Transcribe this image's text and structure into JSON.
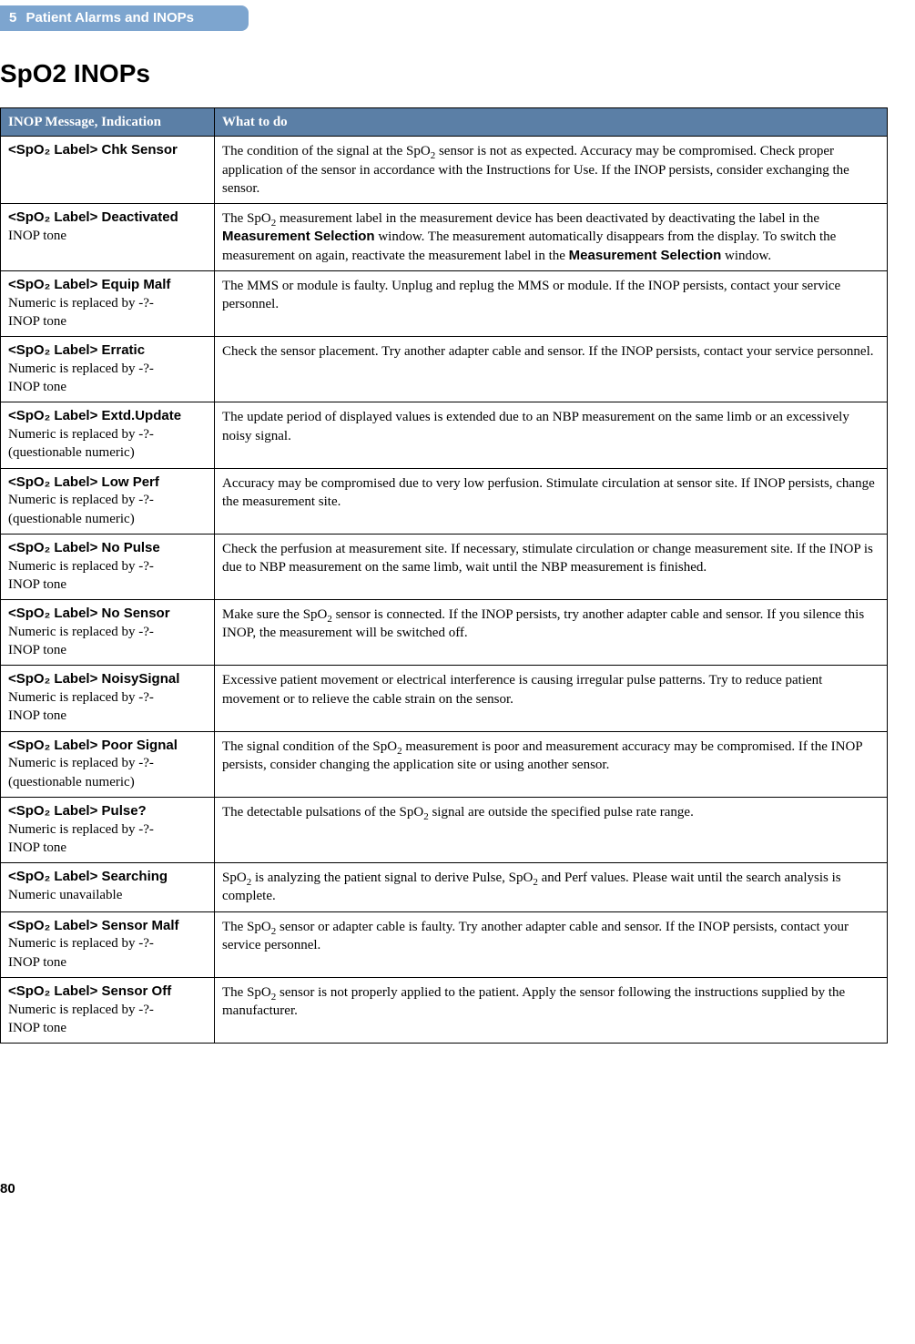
{
  "header": {
    "chapter_num": "5",
    "chapter_title": "Patient Alarms and INOPs"
  },
  "page_title": "SpO2 INOPs",
  "table": {
    "columns": [
      "INOP Message, Indication",
      "What to do"
    ],
    "header_bg": "#5b7fa6",
    "header_fg": "#ffffff",
    "rows": [
      {
        "msg_bold": "<SpO₂ Label> Chk Sensor",
        "msg_sub": "",
        "action_html": "The condition of the signal at the SpO<sub>2</sub> sensor is not as expected. Accuracy may be compromised. Check proper application of the sensor in accordance with the Instructions for Use. If the INOP persists, consider exchanging the sensor."
      },
      {
        "msg_bold": "<SpO₂ Label> Deactivated",
        "msg_sub": "INOP tone",
        "action_html": "The SpO<sub>2</sub> measurement label in the measurement device has been deactivated by deactivating the label in the <span class=\"boldsans\">Measurement Selection</span> window. The measurement automatically disappears from the display. To switch the measurement on again, reactivate the measurement label in the <span class=\"boldsans\">Measurement Selection</span> window."
      },
      {
        "msg_bold": "<SpO₂ Label> Equip Malf",
        "msg_sub": "Numeric is replaced by -?-\nINOP tone",
        "action_html": "The MMS or module is faulty. Unplug and replug the MMS or module. If the INOP persists, contact your service personnel."
      },
      {
        "msg_bold": "<SpO₂ Label> Erratic",
        "msg_sub": "Numeric is replaced by -?-\nINOP tone",
        "action_html": "Check the sensor placement. Try another adapter cable and sensor. If the INOP persists, contact your service personnel."
      },
      {
        "msg_bold": "<SpO₂ Label> Extd.Update",
        "msg_sub": "Numeric is replaced by -?-\n(questionable numeric)",
        "action_html": "The update period of displayed values is extended due to an NBP measurement on the same limb or an excessively noisy signal."
      },
      {
        "msg_bold": "<SpO₂ Label> Low Perf",
        "msg_sub": "Numeric is replaced by -?-\n(questionable numeric)",
        "action_html": "Accuracy may be compromised due to very low perfusion. Stimulate circulation at sensor site. If INOP persists, change the measurement site."
      },
      {
        "msg_bold": "<SpO₂ Label> No Pulse",
        "msg_sub": "Numeric is replaced by -?-\nINOP tone",
        "action_html": "Check the perfusion at measurement site. If necessary, stimulate circulation or change measurement site. If the INOP is due to NBP measurement on the same limb, wait until the NBP measurement is finished."
      },
      {
        "msg_bold": "<SpO₂ Label> No Sensor",
        "msg_sub": "Numeric is replaced by -?-\nINOP tone",
        "action_html": "Make sure the SpO<sub>2</sub> sensor is connected. If the INOP persists, try another adapter cable and sensor. If you silence this INOP, the measurement will be switched off."
      },
      {
        "msg_bold": "<SpO₂ Label> NoisySignal",
        "msg_sub": "Numeric is replaced by -?-\nINOP tone",
        "action_html": "Excessive patient movement or electrical interference is causing irregular pulse patterns. Try to reduce patient movement or to relieve the cable strain on the sensor."
      },
      {
        "msg_bold": "<SpO₂ Label> Poor Signal",
        "msg_sub": "Numeric is replaced by -?-\n(questionable numeric)",
        "action_html": "The signal condition of the SpO<sub>2</sub> measurement is poor and measurement accuracy may be compromised. If the INOP persists, consider changing the application site or using another sensor."
      },
      {
        "msg_bold": "<SpO₂ Label> Pulse?",
        "msg_sub": "Numeric is replaced by -?-\nINOP tone",
        "action_html": "The detectable pulsations of the SpO<sub>2</sub> signal are outside the specified pulse rate range."
      },
      {
        "msg_bold": "<SpO₂ Label> Searching",
        "msg_sub": "Numeric unavailable",
        "action_html": "SpO<sub>2</sub> is analyzing the patient signal to derive Pulse, SpO<sub>2</sub> and Perf values. Please wait until the search analysis is complete."
      },
      {
        "msg_bold": "<SpO₂ Label> Sensor Malf",
        "msg_sub": "Numeric is replaced by -?-\nINOP tone",
        "action_html": "The SpO<sub>2</sub> sensor or adapter cable is faulty. Try another adapter cable and sensor. If the INOP persists, contact your service personnel."
      },
      {
        "msg_bold": "<SpO₂ Label> Sensor Off",
        "msg_sub": "Numeric is replaced by -?-\nINOP tone",
        "action_html": "The SpO<sub>2</sub> sensor is not properly applied to the patient. Apply the sensor following the instructions supplied by the manufacturer."
      }
    ]
  },
  "page_number": "80",
  "colors": {
    "header_bar_bg": "#7da5cf",
    "header_bar_fg": "#ffffff",
    "table_header_bg": "#5b7fa6",
    "table_header_fg": "#ffffff",
    "border": "#000000",
    "text": "#000000",
    "background": "#ffffff"
  }
}
